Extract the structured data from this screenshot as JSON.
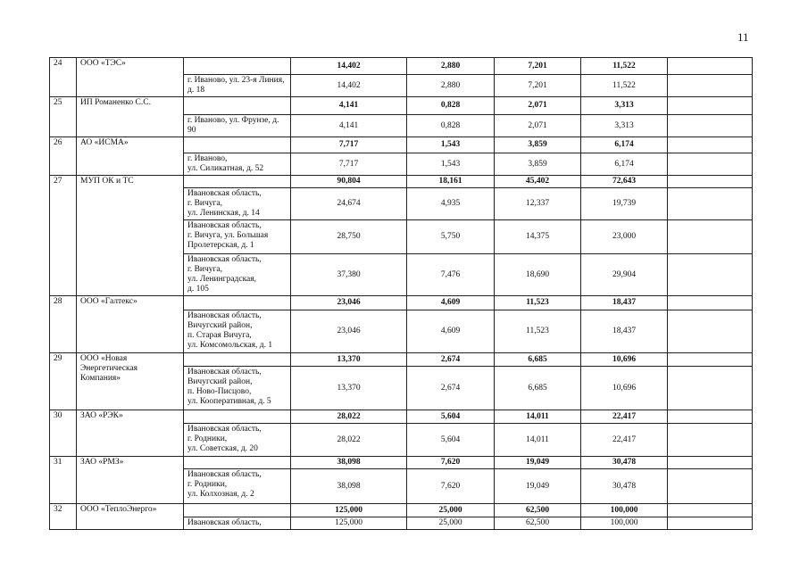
{
  "page_number": "11",
  "rows": [
    {
      "num": "24",
      "org": "ООО «ТЭС»",
      "total": [
        "14,402",
        "2,880",
        "7,201",
        "11,522"
      ],
      "h": 19,
      "subs": [
        {
          "addr": "г. Иваново, ул. 23-я Линия, д. 18",
          "vals": [
            "14,402",
            "2,880",
            "7,201",
            "11,522"
          ],
          "h": 24
        }
      ]
    },
    {
      "num": "25",
      "org": "ИП Романенко С.С.",
      "total": [
        "4,141",
        "0,828",
        "2,071",
        "3,313"
      ],
      "h": 20,
      "subs": [
        {
          "addr": "г. Иваново, ул. Фрунзе, д. 90",
          "vals": [
            "4,141",
            "0,828",
            "2,071",
            "3,313"
          ],
          "h": 25
        }
      ]
    },
    {
      "num": "26",
      "org": "АО «ИСМА»",
      "total": [
        "7,717",
        "1,543",
        "3,859",
        "6,174"
      ],
      "h": 18,
      "subs": [
        {
          "addr": "г. Иваново,\nул. Силикатная, д. 52",
          "vals": [
            "7,717",
            "1,543",
            "3,859",
            "6,174"
          ],
          "h": 25
        }
      ]
    },
    {
      "num": "27",
      "org": "МУП ОК и ТС",
      "total": [
        "90,804",
        "18,161",
        "45,402",
        "72,643"
      ],
      "h": 14,
      "subs": [
        {
          "addr": "Ивановская область,\nг. Вичуга,\nул. Ленинская, д. 14",
          "vals": [
            "24,674",
            "4,935",
            "12,337",
            "19,739"
          ],
          "h": 36
        },
        {
          "addr": "Ивановская область,\nг. Вичуга, ул. Большая Пролетерская, д. 1",
          "vals": [
            "28,750",
            "5,750",
            "14,375",
            "23,000"
          ],
          "h": 38
        },
        {
          "addr": "Ивановская область,\nг. Вичуга,\nул. Ленинградская,\nд. 105",
          "vals": [
            "37,380",
            "7,476",
            "18,690",
            "29,904"
          ],
          "h": 47
        }
      ]
    },
    {
      "num": "28",
      "org": "ООО «Галтекс»",
      "total": [
        "23,046",
        "4,609",
        "11,523",
        "18,437"
      ],
      "h": 16,
      "subs": [
        {
          "addr": "Ивановская область,\nВичугский район,\nп. Старая Вичуга,\nул. Комсомольская, д. 1",
          "vals": [
            "23,046",
            "4,609",
            "11,523",
            "18,437"
          ],
          "h": 48
        }
      ]
    },
    {
      "num": "29",
      "org": "ООО «Новая Энергетическая Компания»",
      "total": [
        "13,370",
        "2,674",
        "6,685",
        "10,696"
      ],
      "h": 15,
      "subs": [
        {
          "addr": "Ивановская область,\nВичугский район,\nп. Ново-Писцово,\nул. Кооперативная, д. 5",
          "vals": [
            "13,370",
            "2,674",
            "6,685",
            "10,696"
          ],
          "h": 49
        }
      ]
    },
    {
      "num": "30",
      "org": "ЗАО «РЭК»",
      "total": [
        "28,022",
        "5,604",
        "14,011",
        "22,417"
      ],
      "h": 15,
      "subs": [
        {
          "addr": "Ивановская область,\nг. Родники,\nул. Советская, д. 20",
          "vals": [
            "28,022",
            "5,604",
            "14,011",
            "22,417"
          ],
          "h": 37
        }
      ]
    },
    {
      "num": "31",
      "org": "ЗАО «РМЗ»",
      "total": [
        "38,098",
        "7,620",
        "19,049",
        "30,478"
      ],
      "h": 14,
      "subs": [
        {
          "addr": "Ивановская область,\nг. Родники,\nул. Колхозная, д. 2",
          "vals": [
            "38,098",
            "7,620",
            "19,049",
            "30,478"
          ],
          "h": 39
        }
      ]
    },
    {
      "num": "32",
      "org": "ООО «ТеплоЭнерго»",
      "total": [
        "125,000",
        "25,000",
        "62,500",
        "100,000"
      ],
      "h": 15,
      "subs": [
        {
          "addr": "Ивановская область,",
          "vals": [
            "125,000",
            "25,000",
            "62,500",
            "100,000"
          ],
          "h": 14
        }
      ]
    }
  ]
}
